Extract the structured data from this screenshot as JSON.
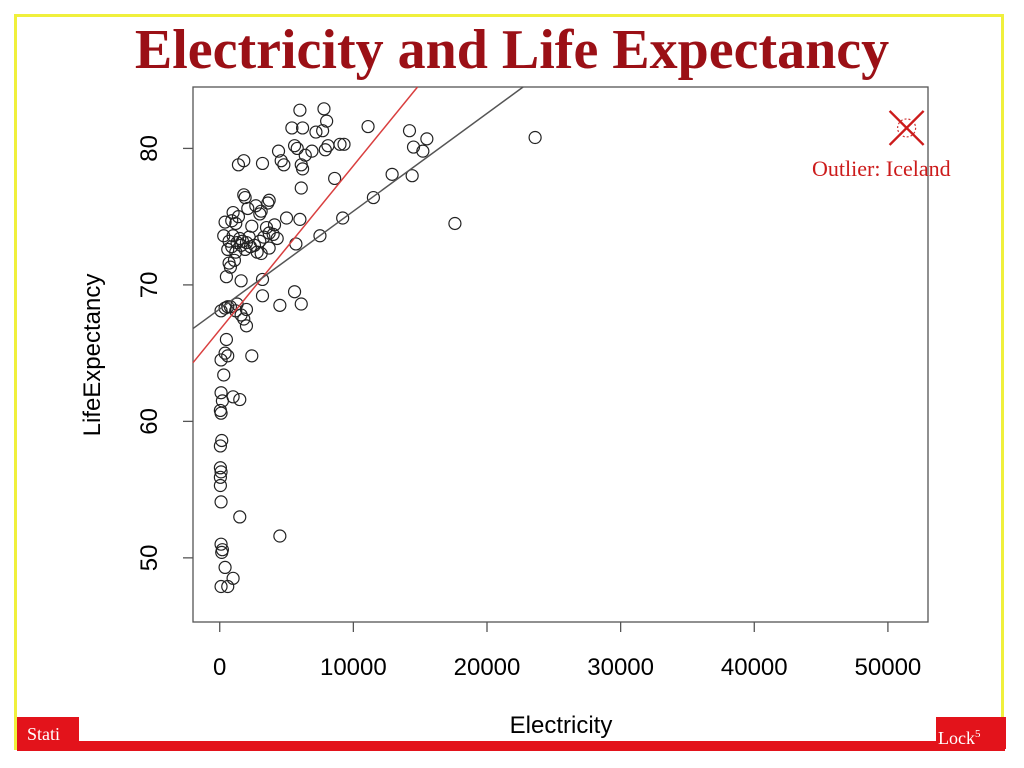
{
  "slide": {
    "title": "Electricity and Life Expectancy",
    "footer_left": "Stati",
    "footer_right_text": "Lock",
    "footer_right_sup": "5",
    "annotation": "Outlier: Iceland",
    "colors": {
      "title": "#9b1016",
      "footer": "#e3131b",
      "frame": "#f0f03c",
      "annotation": "#cc1b1b"
    }
  },
  "chart_data": {
    "type": "scatter",
    "title": "",
    "xlabel": "Electricity",
    "ylabel": "LifeExpectancy",
    "xlim": [
      -2000,
      53000
    ],
    "ylim": [
      45.3,
      84.5
    ],
    "xticks": [
      0,
      10000,
      20000,
      30000,
      40000,
      50000
    ],
    "yticks": [
      50,
      60,
      70,
      80
    ],
    "grid": false,
    "points": [
      [
        6000,
        82.8
      ],
      [
        7800,
        82.9
      ],
      [
        5400,
        81.5
      ],
      [
        6200,
        81.5
      ],
      [
        7200,
        81.2
      ],
      [
        7700,
        81.3
      ],
      [
        8000,
        82.0
      ],
      [
        11100,
        81.6
      ],
      [
        14200,
        81.3
      ],
      [
        4400,
        79.8
      ],
      [
        5600,
        80.2
      ],
      [
        5800,
        80.0
      ],
      [
        6400,
        79.5
      ],
      [
        6900,
        79.8
      ],
      [
        7900,
        79.9
      ],
      [
        8100,
        80.2
      ],
      [
        9000,
        80.3
      ],
      [
        9300,
        80.3
      ],
      [
        14500,
        80.1
      ],
      [
        15200,
        79.8
      ],
      [
        15500,
        80.7
      ],
      [
        23600,
        80.8
      ],
      [
        1400,
        78.8
      ],
      [
        1800,
        79.1
      ],
      [
        3200,
        78.9
      ],
      [
        4600,
        79.1
      ],
      [
        4800,
        78.8
      ],
      [
        6100,
        78.8
      ],
      [
        6200,
        78.5
      ],
      [
        8600,
        77.8
      ],
      [
        12900,
        78.1
      ],
      [
        14400,
        78.0
      ],
      [
        1800,
        76.6
      ],
      [
        1900,
        76.4
      ],
      [
        2700,
        75.8
      ],
      [
        3100,
        75.4
      ],
      [
        3600,
        76.0
      ],
      [
        3700,
        76.2
      ],
      [
        6100,
        77.1
      ],
      [
        11500,
        76.4
      ],
      [
        1000,
        75.3
      ],
      [
        1400,
        75.0
      ],
      [
        2100,
        75.6
      ],
      [
        3000,
        75.2
      ],
      [
        5000,
        74.9
      ],
      [
        6000,
        74.8
      ],
      [
        9200,
        74.9
      ],
      [
        17600,
        74.5
      ],
      [
        400,
        74.6
      ],
      [
        900,
        74.7
      ],
      [
        1200,
        74.5
      ],
      [
        2400,
        74.3
      ],
      [
        3500,
        74.2
      ],
      [
        4100,
        74.4
      ],
      [
        300,
        73.6
      ],
      [
        700,
        73.2
      ],
      [
        1000,
        73.6
      ],
      [
        1300,
        73.1
      ],
      [
        1500,
        73.4
      ],
      [
        1700,
        73.2
      ],
      [
        2000,
        73.1
      ],
      [
        2200,
        73.5
      ],
      [
        2600,
        72.9
      ],
      [
        3000,
        73.2
      ],
      [
        3300,
        73.5
      ],
      [
        3700,
        73.8
      ],
      [
        4000,
        73.7
      ],
      [
        4300,
        73.4
      ],
      [
        7500,
        73.6
      ],
      [
        600,
        72.6
      ],
      [
        900,
        72.8
      ],
      [
        1200,
        72.4
      ],
      [
        1600,
        72.9
      ],
      [
        1900,
        72.6
      ],
      [
        2300,
        72.8
      ],
      [
        2800,
        72.4
      ],
      [
        3100,
        72.3
      ],
      [
        3700,
        72.7
      ],
      [
        5700,
        73.0
      ],
      [
        700,
        71.6
      ],
      [
        800,
        71.3
      ],
      [
        1100,
        71.8
      ],
      [
        500,
        70.6
      ],
      [
        1600,
        70.3
      ],
      [
        3200,
        70.4
      ],
      [
        3200,
        69.2
      ],
      [
        5600,
        69.5
      ],
      [
        100,
        68.1
      ],
      [
        400,
        68.3
      ],
      [
        600,
        68.4
      ],
      [
        800,
        68.4
      ],
      [
        1200,
        68.1
      ],
      [
        1300,
        68.6
      ],
      [
        2000,
        68.2
      ],
      [
        4500,
        68.5
      ],
      [
        6100,
        68.6
      ],
      [
        1600,
        67.8
      ],
      [
        1800,
        67.5
      ],
      [
        2000,
        67.0
      ],
      [
        500,
        66.0
      ],
      [
        400,
        65.0
      ],
      [
        600,
        64.8
      ],
      [
        2400,
        64.8
      ],
      [
        100,
        64.5
      ],
      [
        300,
        63.4
      ],
      [
        100,
        62.1
      ],
      [
        1000,
        61.8
      ],
      [
        1500,
        61.6
      ],
      [
        200,
        61.5
      ],
      [
        50,
        60.8
      ],
      [
        100,
        60.6
      ],
      [
        150,
        58.6
      ],
      [
        50,
        58.2
      ],
      [
        50,
        56.6
      ],
      [
        100,
        56.3
      ],
      [
        50,
        55.9
      ],
      [
        50,
        55.3
      ],
      [
        100,
        54.1
      ],
      [
        1500,
        53.0
      ],
      [
        4500,
        51.6
      ],
      [
        100,
        51.0
      ],
      [
        200,
        50.6
      ],
      [
        150,
        50.4
      ],
      [
        400,
        49.3
      ],
      [
        1000,
        48.5
      ],
      [
        100,
        47.9
      ],
      [
        600,
        47.9
      ]
    ],
    "lines": [
      {
        "color": "#d93f3f",
        "x": [
          -2000,
          14800
        ],
        "y": [
          64.3,
          84.5
        ]
      },
      {
        "color": "#555555",
        "x": [
          -2000,
          22700
        ],
        "y": [
          66.8,
          84.5
        ]
      }
    ],
    "highlight_point": {
      "x": 51400,
      "y": 81.5,
      "color": "#cc1b1b"
    }
  }
}
